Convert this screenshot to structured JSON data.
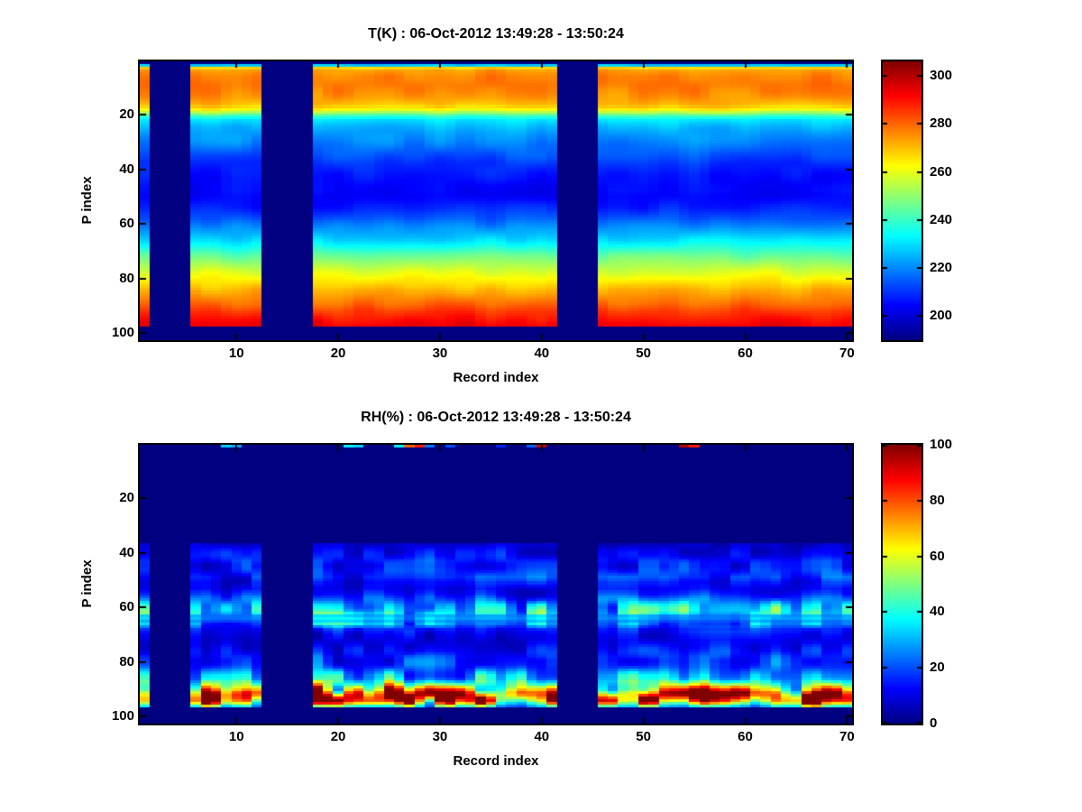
{
  "figure": {
    "background": "#ffffff",
    "missing_color": "#000080",
    "axis_color": "#000000",
    "text_color": "#000000"
  },
  "chart_data": [
    {
      "type": "heatmap",
      "title": "T(K) : 06-Oct-2012 13:49:28 - 13:50:24",
      "xlabel": "Record index",
      "ylabel": "P index",
      "x_ticks": [
        10,
        20,
        30,
        40,
        50,
        60,
        70
      ],
      "y_ticks": [
        20,
        40,
        60,
        80,
        100
      ],
      "colorbar_ticks": [
        200,
        220,
        240,
        260,
        280,
        300
      ],
      "x_range": [
        0.5,
        70.5
      ],
      "y_range": [
        0.5,
        102.5
      ],
      "y_axis_reversed": true,
      "grid": false,
      "n_records": 70,
      "n_levels": 102,
      "data_level_range": [
        2,
        97
      ],
      "missing_records": [
        2,
        3,
        4,
        5,
        13,
        14,
        15,
        16,
        17,
        42,
        43,
        44,
        45
      ],
      "colormap": "jet",
      "clim": [
        190,
        306
      ],
      "units": "K",
      "noise_mode": "add",
      "noise": {
        "seed": 7,
        "scale_x": 2.5,
        "scale_y": 6,
        "amp": 3.5
      },
      "profile_points": [
        [
          2,
          228
        ],
        [
          3,
          268
        ],
        [
          4,
          274
        ],
        [
          6,
          277
        ],
        [
          9,
          278
        ],
        [
          12,
          276
        ],
        [
          14,
          274
        ],
        [
          16,
          271
        ],
        [
          17,
          268
        ],
        [
          18,
          263
        ],
        [
          19,
          254
        ],
        [
          20,
          244
        ],
        [
          21,
          236
        ],
        [
          22,
          231
        ],
        [
          24,
          227
        ],
        [
          26,
          224
        ],
        [
          30,
          220
        ],
        [
          34,
          215
        ],
        [
          38,
          210
        ],
        [
          42,
          207
        ],
        [
          46,
          205
        ],
        [
          50,
          204
        ],
        [
          54,
          208
        ],
        [
          58,
          214
        ],
        [
          62,
          222
        ],
        [
          65,
          228
        ],
        [
          68,
          235
        ],
        [
          71,
          243
        ],
        [
          74,
          250
        ],
        [
          77,
          257
        ],
        [
          80,
          263
        ],
        [
          83,
          269
        ],
        [
          86,
          275
        ],
        [
          89,
          280
        ],
        [
          92,
          286
        ],
        [
          94,
          289
        ],
        [
          96,
          292
        ],
        [
          97,
          293
        ]
      ]
    },
    {
      "type": "heatmap",
      "title": "RH(%) : 06-Oct-2012 13:49:28 - 13:50:24",
      "xlabel": "Record index",
      "ylabel": "P index",
      "x_ticks": [
        10,
        20,
        30,
        40,
        50,
        60,
        70
      ],
      "y_ticks": [
        20,
        40,
        60,
        80,
        100
      ],
      "colorbar_ticks": [
        0,
        20,
        40,
        60,
        80,
        100
      ],
      "x_range": [
        0.5,
        70.5
      ],
      "y_range": [
        0.5,
        102.5
      ],
      "y_axis_reversed": true,
      "grid": false,
      "n_records": 70,
      "n_levels": 102,
      "data_level_range": [
        37,
        96
      ],
      "missing_records": [
        2,
        3,
        4,
        5,
        13,
        14,
        15,
        16,
        17,
        42,
        43,
        44,
        45
      ],
      "colormap": "jet",
      "clim": [
        0,
        100
      ],
      "units": "%",
      "noise_mode": "mul",
      "noise": {
        "seed": 11,
        "scale_x": 1.8,
        "scale_y": 5,
        "amp": 1
      },
      "modulation": {
        "normal": [
          0.35,
          1.45
        ],
        "steady": [
          0.8,
          0.5
        ],
        "steady_levels": [
          63,
          65
        ]
      },
      "profile_points": [
        [
          37,
          7
        ],
        [
          39,
          10
        ],
        [
          41,
          12
        ],
        [
          43,
          14
        ],
        [
          45,
          13
        ],
        [
          47,
          15
        ],
        [
          49,
          16
        ],
        [
          51,
          12
        ],
        [
          53,
          10
        ],
        [
          55,
          13
        ],
        [
          57,
          20
        ],
        [
          59,
          28
        ],
        [
          61,
          33
        ],
        [
          63,
          36
        ],
        [
          64,
          38
        ],
        [
          65,
          33
        ],
        [
          66,
          26
        ],
        [
          68,
          14
        ],
        [
          70,
          10
        ],
        [
          72,
          9
        ],
        [
          74,
          11
        ],
        [
          76,
          14
        ],
        [
          78,
          17
        ],
        [
          80,
          17
        ],
        [
          82,
          19
        ],
        [
          84,
          24
        ],
        [
          86,
          30
        ],
        [
          88,
          45
        ],
        [
          90,
          65
        ],
        [
          91,
          78
        ],
        [
          92,
          85
        ],
        [
          93,
          86
        ],
        [
          94,
          82
        ],
        [
          95,
          65
        ],
        [
          96,
          42
        ]
      ],
      "top_specks": [
        [
          9,
          32
        ],
        [
          10,
          28
        ],
        [
          21,
          36
        ],
        [
          22,
          33
        ],
        [
          26,
          36
        ],
        [
          27,
          78
        ],
        [
          28,
          85
        ],
        [
          29,
          24
        ],
        [
          31,
          20
        ],
        [
          36,
          16
        ],
        [
          39,
          22
        ],
        [
          40,
          92
        ],
        [
          54,
          95
        ],
        [
          55,
          85
        ]
      ]
    }
  ]
}
